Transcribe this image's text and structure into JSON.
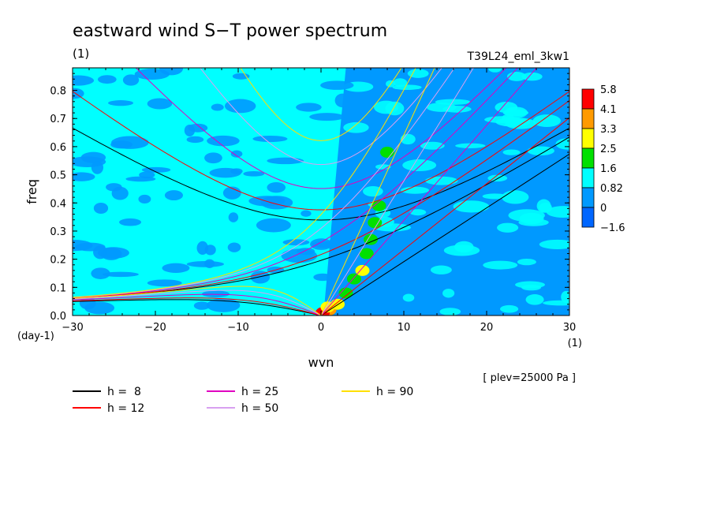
{
  "chart_data": {
    "type": "heatmap",
    "title": "eastward wind S−T power spectrum",
    "subtitle_left": "(1)",
    "subtitle_right": "T39L24_eml_3kw1",
    "xlabel": "wvn",
    "xunit": "(1)",
    "ylabel": "freq",
    "yunit": "(day-1)",
    "xlim": [
      -30,
      30
    ],
    "ylim": [
      0,
      0.88
    ],
    "xticks": [
      -30,
      -20,
      -10,
      0,
      10,
      20,
      30
    ],
    "yticks": [
      0.0,
      0.1,
      0.2,
      0.3,
      0.4,
      0.5,
      0.6,
      0.7,
      0.8
    ],
    "note": "[ plev=25000 Pa ]",
    "colorbar": {
      "levels": [
        "5.8",
        "4.1",
        "3.3",
        "2.5",
        "1.6",
        "0.82",
        "0",
        "−1.6"
      ],
      "colors": [
        "#ff0000",
        "#ff9a00",
        "#ffff00",
        "#00e000",
        "#00ffff",
        "#0099ff",
        "#0066ff"
      ]
    },
    "series": [
      {
        "name": "h =  8",
        "h": 8,
        "color": "#000000"
      },
      {
        "name": "h = 12",
        "h": 12,
        "color": "#ff0000"
      },
      {
        "name": "h = 25",
        "h": 25,
        "color": "#e000c0"
      },
      {
        "name": "h = 50",
        "h": 50,
        "color": "#d8a0f0"
      },
      {
        "name": "h = 90",
        "h": 90,
        "color": "#ffe000"
      }
    ]
  }
}
